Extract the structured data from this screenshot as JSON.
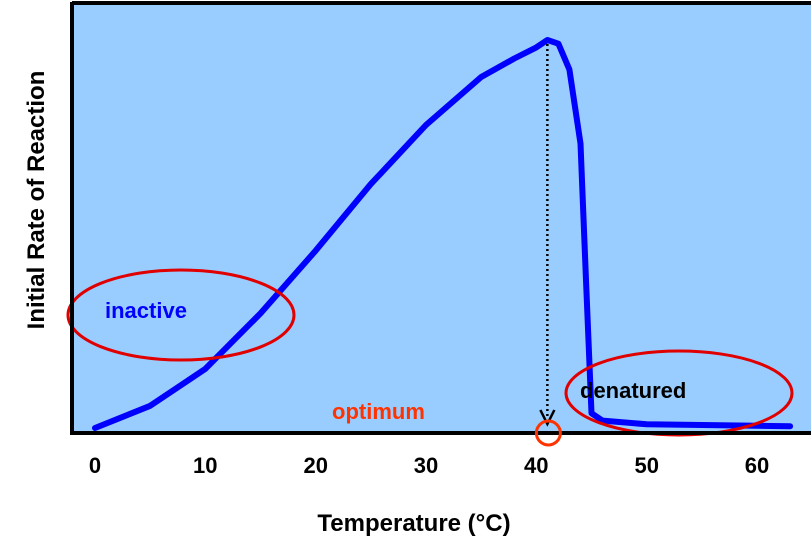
{
  "chart_data": {
    "type": "line",
    "title": "",
    "xlabel": "Temperature (°C)",
    "ylabel": "Initial Rate of Reaction",
    "xlim": [
      0,
      63
    ],
    "ylim": [
      0,
      100
    ],
    "x_ticks": [
      0,
      10,
      20,
      30,
      40,
      50,
      60
    ],
    "x_tick_labels": [
      "0",
      "10",
      "20",
      "30",
      "40",
      "50",
      "60"
    ],
    "y_ticks": [],
    "grid": false,
    "series": [
      {
        "color": "#0000ff",
        "x": [
          0,
          5,
          10,
          15,
          20,
          25,
          30,
          35,
          38,
          40,
          41,
          42,
          43,
          44,
          44.5,
          45,
          46,
          50,
          55,
          60,
          63
        ],
        "y": [
          0,
          6,
          16,
          31,
          48,
          66,
          82,
          95,
          100,
          103,
          105,
          104,
          97,
          77,
          40,
          4,
          2,
          1,
          0.8,
          0.6,
          0.5
        ]
      }
    ],
    "annotations": [
      {
        "id": "inactive",
        "text": "inactive",
        "color": "#0000ff"
      },
      {
        "id": "denatured",
        "text": "denatured",
        "color": "#000000"
      },
      {
        "id": "optimum",
        "text": "optimum",
        "color": "#ff3300",
        "x": 41
      }
    ],
    "colors": {
      "plot_background": "#99ccff",
      "axis": "#000000",
      "curve": "#0000ff",
      "ellipse": "#e00000",
      "optimum_marker": "#ff3300"
    }
  }
}
